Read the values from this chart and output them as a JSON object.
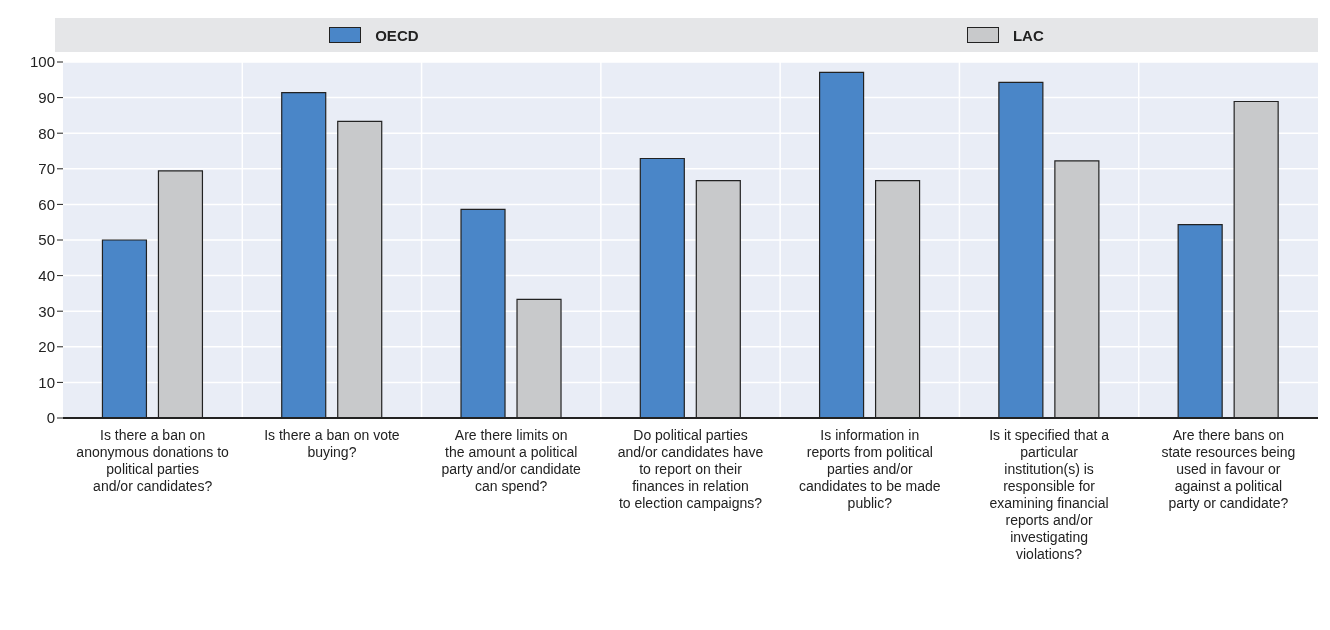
{
  "chart_data": {
    "type": "bar",
    "categories": [
      "Is there a ban on anonymous donations to political parties and/or candidates?",
      "Is there a ban on vote buying?",
      "Are there limits on the amount a political party and/or candidate can spend?",
      "Do political parties and/or candidates have to report on their finances in relation to election campaigns?",
      "Is information in reports from political parties and/or candidates to be made public?",
      "Is it specified that a particular institution(s) is responsible for examining financial reports and/or investigating violations?",
      "Are there bans on state resources being used in favour or against a political party or candidate?"
    ],
    "series": [
      {
        "name": "OECD",
        "color": "#4a86c8",
        "values": [
          50,
          91.4,
          58.6,
          72.9,
          97.1,
          94.3,
          54.3
        ]
      },
      {
        "name": "LAC",
        "color": "#c8c9cb",
        "values": [
          69.4,
          83.3,
          33.3,
          66.7,
          66.7,
          72.2,
          88.9
        ]
      }
    ],
    "ylim": [
      0,
      100
    ],
    "yticks": [
      0,
      10,
      20,
      30,
      40,
      50,
      60,
      70,
      80,
      90,
      100
    ],
    "grid": true,
    "legend": "top"
  }
}
